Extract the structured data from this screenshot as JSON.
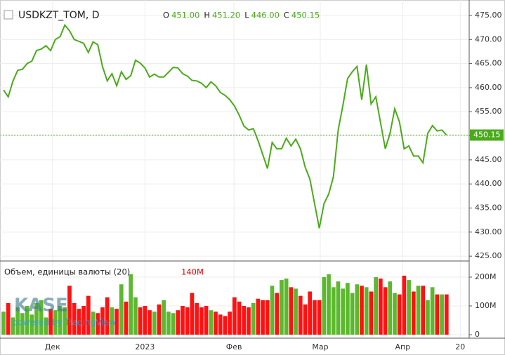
{
  "chart_data": {
    "type": "price-volume",
    "symbol": "USDKZT_TOM, D",
    "ohlc": [
      {
        "label": "O",
        "value": "451.00"
      },
      {
        "label": "H",
        "value": "451.20"
      },
      {
        "label": "L",
        "value": "446.00"
      },
      {
        "label": "C",
        "value": "450.15"
      }
    ],
    "price": {
      "color": "#4aab1a",
      "values": [
        459.5,
        458.1,
        461.4,
        463.6,
        463.8,
        465,
        465.5,
        467.7,
        468,
        468.7,
        467.7,
        470,
        470.6,
        473,
        471.8,
        470,
        469.6,
        469.2,
        467.3,
        469.5,
        468.9,
        464.4,
        461.4,
        462.9,
        460.4,
        463.3,
        461.7,
        462.5,
        465.7,
        465.1,
        464.1,
        462.2,
        462.8,
        462.2,
        462.2,
        463.2,
        464.2,
        464.1,
        462.9,
        462.4,
        461.5,
        461.4,
        460.9,
        460,
        461.2,
        460.4,
        459,
        458.4,
        457.5,
        456.2,
        454.3,
        452,
        451.2,
        451.5,
        449,
        446.1,
        443.2,
        448.6,
        447.3,
        447.3,
        449.5,
        447.9,
        449.3,
        447.3,
        443.5,
        441,
        435.9,
        430.8,
        435.9,
        437.9,
        441.5,
        451.2,
        456.3,
        461.9,
        463.3,
        464.4,
        457.5,
        464.8,
        456.6,
        458.1,
        452.7,
        447.3,
        450.5,
        455.6,
        452.9,
        447.3,
        447.9,
        445.8,
        445.8,
        444.4,
        450.5,
        452.1,
        451,
        451.2,
        450.15
      ],
      "ylim": [
        424,
        478.2
      ],
      "yticks": [
        {
          "value": 425,
          "label": "425.00"
        },
        {
          "value": 430,
          "label": "430.00"
        },
        {
          "value": 435,
          "label": "435.00"
        },
        {
          "value": 440,
          "label": "440.00"
        },
        {
          "value": 445,
          "label": "445.00"
        },
        {
          "value": 450,
          "label": "450.00"
        },
        {
          "value": 455,
          "label": "455.00"
        },
        {
          "value": 460,
          "label": "460.00"
        },
        {
          "value": 465,
          "label": "465.00"
        },
        {
          "value": 470,
          "label": "470.00"
        },
        {
          "value": 475,
          "label": "475.00"
        }
      ],
      "last_price": {
        "value": 450.15,
        "label": "450.15"
      }
    },
    "volume": {
      "title": "Объем, единицы валюты (20)",
      "legend_value": "140M",
      "up_color": "#5cb82e",
      "down_color": "#ff1111",
      "values": [
        80,
        110,
        60,
        95,
        75,
        100,
        70,
        110,
        120,
        60,
        90,
        85,
        100,
        95,
        170,
        110,
        90,
        100,
        135,
        80,
        75,
        95,
        130,
        95,
        90,
        175,
        115,
        210,
        130,
        95,
        100,
        85,
        80,
        105,
        120,
        80,
        75,
        85,
        100,
        95,
        145,
        110,
        95,
        100,
        85,
        80,
        70,
        65,
        80,
        130,
        115,
        100,
        95,
        110,
        125,
        120,
        120,
        170,
        145,
        190,
        195,
        165,
        160,
        135,
        105,
        150,
        120,
        120,
        200,
        210,
        165,
        185,
        160,
        180,
        145,
        175,
        170,
        165,
        150,
        200,
        195,
        165,
        185,
        145,
        140,
        205,
        190,
        150,
        170,
        170,
        120,
        165,
        140,
        140,
        140
      ],
      "ylim": [
        -12,
        256
      ],
      "yticks": [
        0,
        {
          "value": 100,
          "label": "100M"
        },
        {
          "value": 200,
          "label": "200M"
        }
      ]
    },
    "xlim": [
      -0.75,
      98.8
    ],
    "xticks": [
      {
        "value": 10.4,
        "label": "Дек"
      },
      {
        "value": 30,
        "label": "2023"
      },
      {
        "value": 48.9,
        "label": "Фев"
      },
      {
        "value": 67.2,
        "label": "Мар"
      },
      {
        "value": 84.7,
        "label": "Апр"
      },
      {
        "value": 96.9,
        "label": "20"
      }
    ],
    "watermark": "KASE",
    "powered_by": "powered by TradingView"
  }
}
